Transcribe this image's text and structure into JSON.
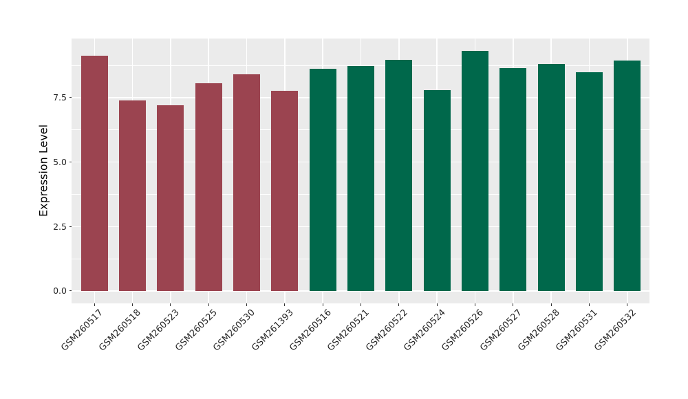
{
  "chart_data": {
    "type": "bar",
    "title": "",
    "ylabel": "Expression Level",
    "xlabel": "",
    "categories": [
      "GSM260517",
      "GSM260518",
      "GSM260523",
      "GSM260525",
      "GSM260530",
      "GSM261393",
      "GSM260516",
      "GSM260521",
      "GSM260522",
      "GSM260524",
      "GSM260526",
      "GSM260527",
      "GSM260528",
      "GSM260531",
      "GSM260532"
    ],
    "values": [
      9.13,
      7.4,
      7.2,
      8.06,
      8.39,
      7.75,
      8.61,
      8.71,
      8.97,
      7.79,
      9.31,
      8.64,
      8.8,
      8.47,
      8.93
    ],
    "group_of_bar": [
      0,
      0,
      0,
      0,
      0,
      0,
      1,
      1,
      1,
      1,
      1,
      1,
      1,
      1,
      1
    ],
    "groups": [
      {
        "name": "group-red",
        "color": "#9B4450"
      },
      {
        "name": "group-green",
        "color": "#00684B"
      }
    ],
    "ylim": [
      0,
      9.79
    ],
    "y_major_ticks": [
      0,
      2.5,
      5,
      7.5
    ],
    "y_tick_labels": [
      "0.0",
      "2.5",
      "5.0",
      "7.5"
    ],
    "y_minor_ticks": [
      1.25,
      3.75,
      6.25,
      8.75
    ],
    "grid": true,
    "legend": "none",
    "panel_background": "#EBEBEB",
    "grid_color": "#FFFFFF",
    "tick_color": "#333333",
    "tick_label_color": "#262626",
    "axis_title_color": "#000000"
  }
}
